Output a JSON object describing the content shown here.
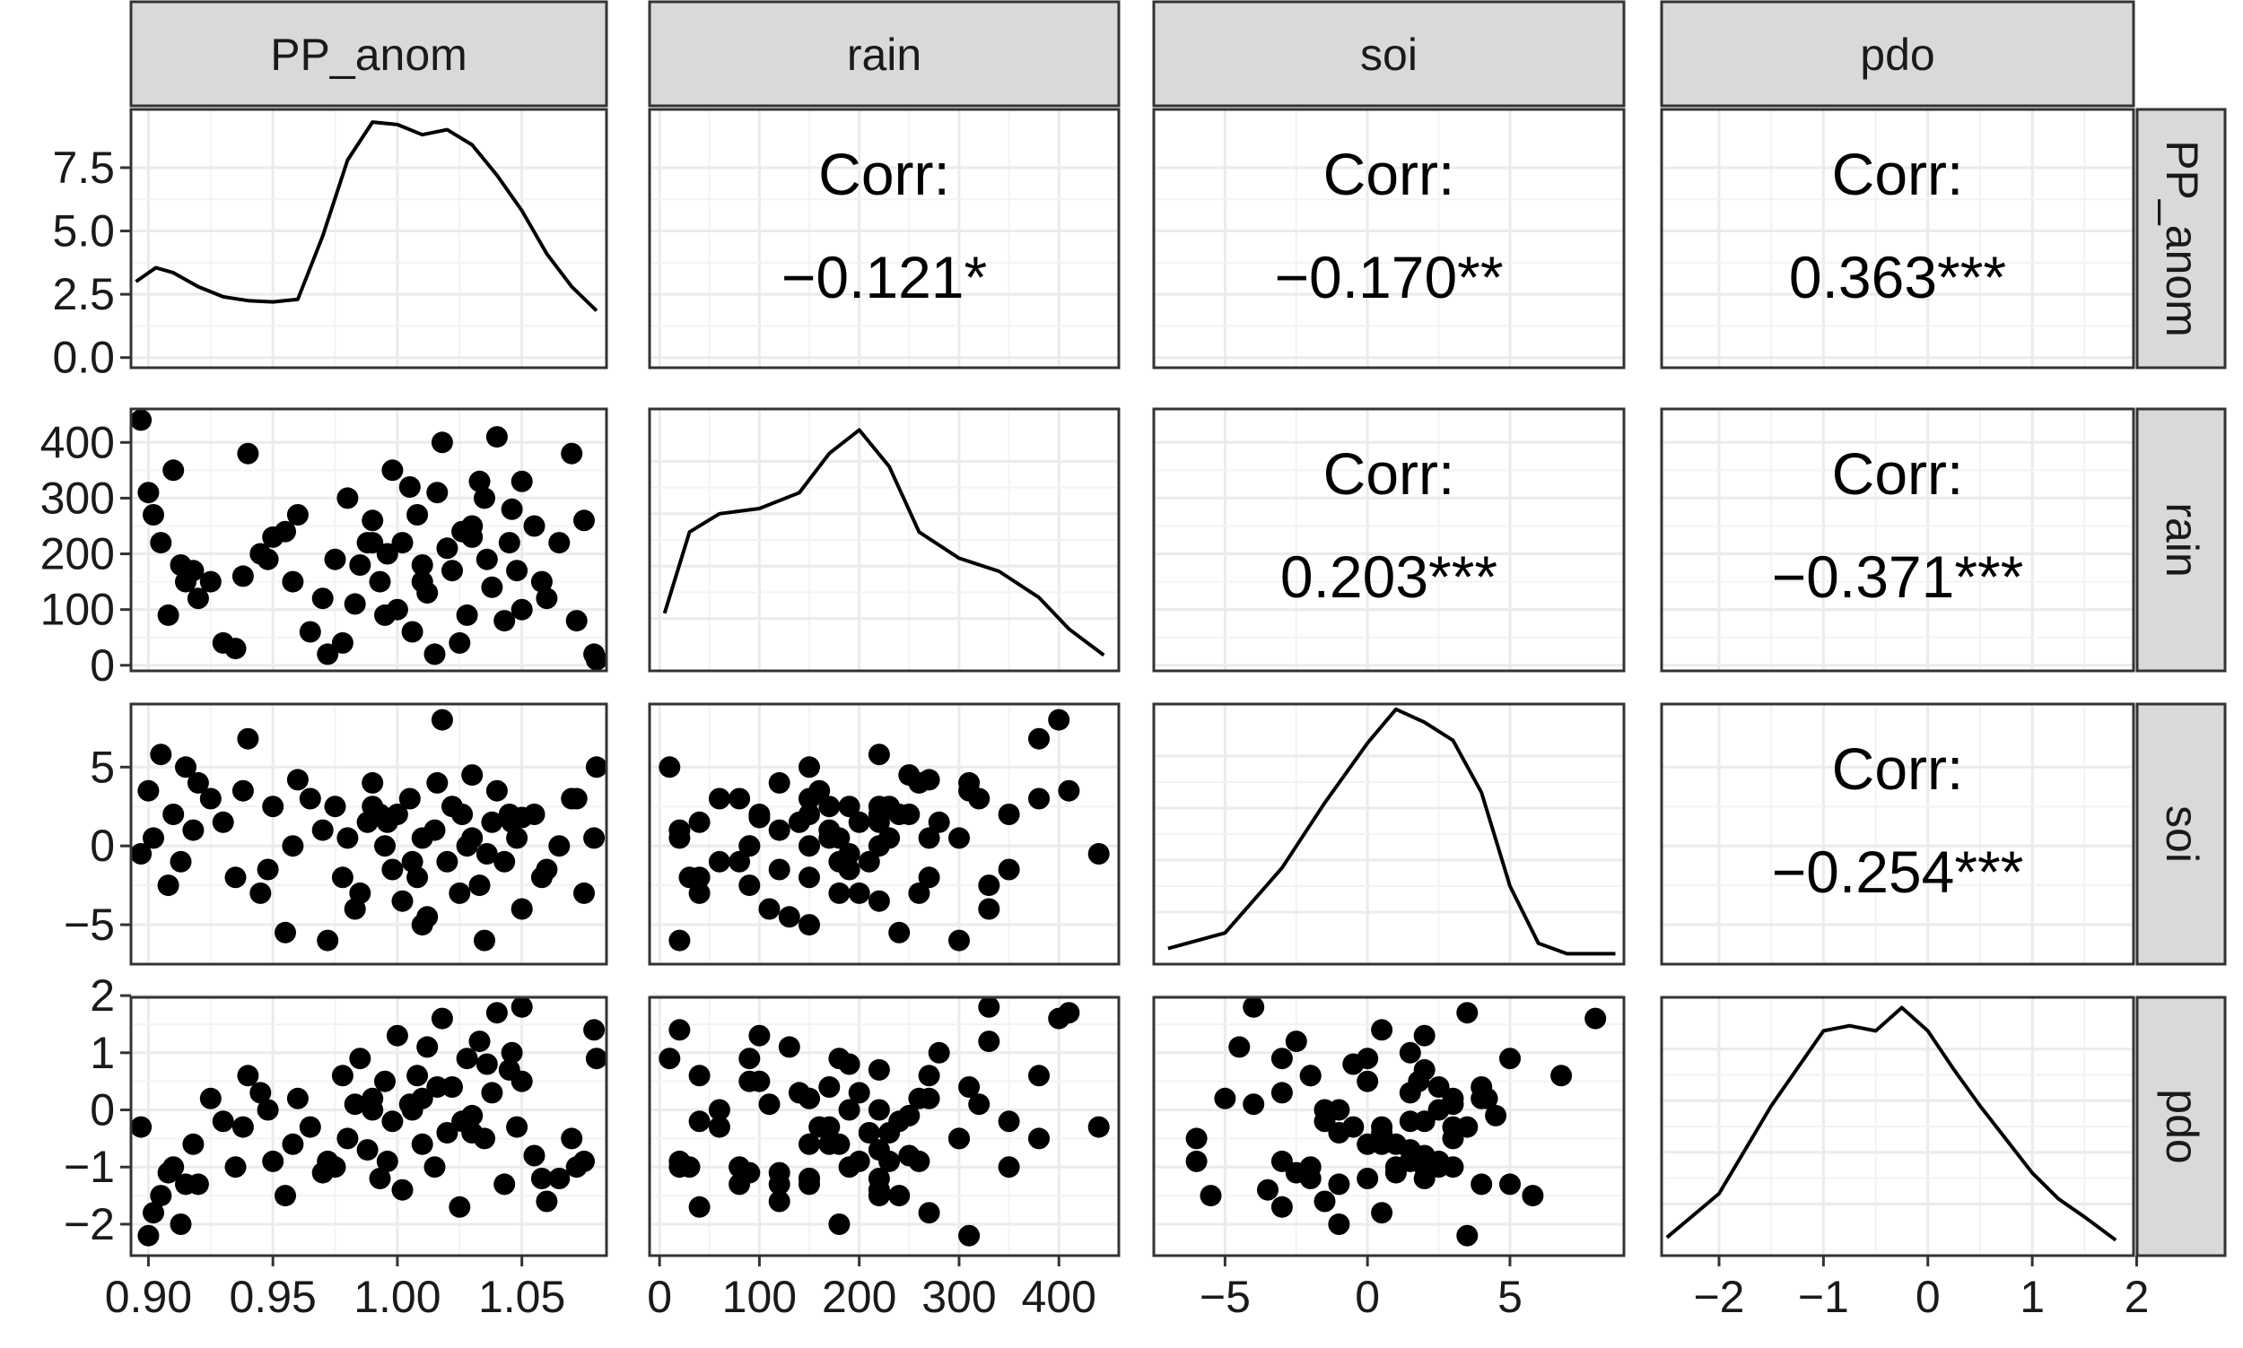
{
  "chart_data": {
    "type": "scatter",
    "variables": [
      "PP_anom",
      "rain",
      "soi",
      "pdo"
    ],
    "corr_label": "Corr:",
    "correlations": [
      {
        "row": 0,
        "col": 1,
        "value": "−0.121*"
      },
      {
        "row": 0,
        "col": 2,
        "value": "−0.170**"
      },
      {
        "row": 0,
        "col": 3,
        "value": "0.363***"
      },
      {
        "row": 1,
        "col": 2,
        "value": "0.203***"
      },
      {
        "row": 1,
        "col": 3,
        "value": "−0.371***"
      },
      {
        "row": 2,
        "col": 3,
        "value": "−0.254***"
      }
    ],
    "x_axes": [
      {
        "range": [
          0.893,
          1.084
        ],
        "ticks": [
          0.9,
          0.95,
          1.0,
          1.05
        ],
        "tick_labels": [
          "0.90",
          "0.95",
          "1.00",
          "1.05"
        ]
      },
      {
        "range": [
          -10,
          460
        ],
        "ticks": [
          0,
          100,
          200,
          300,
          400
        ],
        "tick_labels": [
          "0",
          "100",
          "200",
          "300",
          "400"
        ]
      },
      {
        "range": [
          -7.5,
          9.0
        ],
        "ticks": [
          -5,
          0,
          5
        ],
        "tick_labels": [
          "−5",
          "0",
          "5"
        ]
      },
      {
        "range": [
          -2.55,
          1.97
        ],
        "ticks": [
          -2,
          -1,
          0,
          1,
          2
        ],
        "tick_labels": [
          "−2",
          "−1",
          "0",
          "1",
          "2"
        ]
      }
    ],
    "y_axes": [
      {
        "range": [
          -0.4,
          9.8
        ],
        "ticks": [
          0,
          2.5,
          5,
          7.5
        ],
        "tick_labels": [
          "0.0",
          "2.5",
          "5.0",
          "7.5"
        ]
      },
      {
        "range": [
          -10,
          460
        ],
        "ticks": [
          0,
          100,
          200,
          300,
          400
        ],
        "tick_labels": [
          "0",
          "100",
          "200",
          "300",
          "400"
        ]
      },
      {
        "range": [
          -7.5,
          9.0
        ],
        "ticks": [
          -5,
          0,
          5
        ],
        "tick_labels": [
          "−5",
          "0",
          "5"
        ]
      },
      {
        "range": [
          -2.55,
          1.97
        ],
        "ticks": [
          -2,
          -1,
          0,
          1,
          2
        ],
        "tick_labels": [
          "−2",
          "−1",
          "0",
          "1",
          "2"
        ]
      }
    ],
    "density_ylims": [
      [
        -0.4,
        9.8
      ],
      [
        0,
        1
      ],
      [
        0,
        1
      ],
      [
        0,
        1
      ]
    ],
    "densities": [
      {
        "var": "PP_anom",
        "x": [
          0.895,
          0.903,
          0.91,
          0.92,
          0.93,
          0.94,
          0.95,
          0.96,
          0.97,
          0.98,
          0.99,
          1.0,
          1.01,
          1.02,
          1.03,
          1.04,
          1.05,
          1.06,
          1.07,
          1.08
        ],
        "y": [
          3.0,
          3.55,
          3.35,
          2.8,
          2.4,
          2.25,
          2.2,
          2.3,
          4.8,
          7.8,
          9.3,
          9.2,
          8.8,
          9.0,
          8.4,
          7.2,
          5.8,
          4.1,
          2.8,
          1.85
        ]
      },
      {
        "var": "rain",
        "x": [
          5,
          30,
          60,
          100,
          140,
          170,
          200,
          230,
          260,
          300,
          340,
          380,
          410,
          445
        ],
        "y": [
          0.22,
          0.53,
          0.6,
          0.62,
          0.68,
          0.83,
          0.92,
          0.78,
          0.53,
          0.43,
          0.38,
          0.28,
          0.16,
          0.06
        ]
      },
      {
        "var": "soi",
        "x": [
          -7.0,
          -5.0,
          -3.0,
          -1.5,
          0,
          1.0,
          2.0,
          3.0,
          4.0,
          5.0,
          6.0,
          7.0,
          8.7
        ],
        "y": [
          0.06,
          0.12,
          0.37,
          0.62,
          0.85,
          0.98,
          0.93,
          0.86,
          0.66,
          0.3,
          0.08,
          0.04,
          0.04
        ]
      },
      {
        "var": "pdo",
        "x": [
          -2.5,
          -2.0,
          -1.5,
          -1.0,
          -0.75,
          -0.5,
          -0.25,
          0,
          0.25,
          0.5,
          0.75,
          1.0,
          1.25,
          1.5,
          1.8
        ],
        "y": [
          0.07,
          0.24,
          0.58,
          0.87,
          0.89,
          0.87,
          0.96,
          0.87,
          0.72,
          0.58,
          0.45,
          0.32,
          0.22,
          0.15,
          0.06
        ]
      }
    ],
    "scatter_series": [
      {
        "var": "PP_anom",
        "values": [
          0.9,
          0.905,
          0.91,
          0.913,
          0.92,
          0.925,
          0.93,
          0.935,
          0.94,
          0.945,
          0.95,
          0.955,
          0.96,
          0.965,
          0.97,
          0.972,
          0.978,
          0.98,
          0.985,
          0.988,
          0.99,
          0.993,
          0.995,
          0.998,
          1.0,
          1.002,
          1.005,
          1.008,
          1.01,
          1.012,
          1.015,
          1.018,
          1.02,
          1.022,
          1.025,
          1.028,
          1.03,
          1.033,
          1.035,
          1.038,
          1.04,
          1.043,
          1.045,
          1.048,
          1.05,
          1.055,
          1.06,
          1.065,
          1.07,
          1.075,
          1.08,
          0.902,
          0.908,
          0.918,
          0.938,
          0.958,
          0.975,
          0.983,
          0.996,
          1.006,
          1.016,
          1.026,
          1.036,
          1.046,
          1.058,
          1.072,
          1.079,
          0.897,
          0.915,
          0.948,
          0.99,
          1.01,
          1.03,
          1.05
        ]
      },
      {
        "var": "rain",
        "values": [
          310,
          220,
          350,
          180,
          120,
          150,
          40,
          30,
          380,
          200,
          230,
          240,
          270,
          60,
          120,
          20,
          40,
          300,
          180,
          220,
          260,
          150,
          90,
          350,
          100,
          220,
          320,
          270,
          180,
          130,
          20,
          400,
          210,
          170,
          40,
          90,
          250,
          330,
          300,
          140,
          410,
          80,
          220,
          170,
          330,
          250,
          120,
          220,
          380,
          260,
          10,
          270,
          90,
          170,
          160,
          150,
          190,
          110,
          200,
          60,
          310,
          240,
          190,
          280,
          150,
          80,
          20,
          440,
          150,
          190,
          220,
          150,
          230,
          100
        ]
      },
      {
        "var": "soi",
        "values": [
          3.5,
          5.8,
          2.0,
          -1.0,
          4.0,
          3.0,
          1.5,
          -2.0,
          6.8,
          -3.0,
          2.5,
          -5.5,
          4.2,
          3.0,
          1.0,
          -6.0,
          -2.0,
          0.5,
          -3.0,
          1.5,
          4.0,
          2.0,
          0.0,
          -1.5,
          2.0,
          -3.5,
          3.0,
          -2.0,
          0.5,
          -4.5,
          1.0,
          8.0,
          -1.0,
          2.5,
          -3.0,
          0.0,
          4.5,
          -2.5,
          -6.0,
          1.5,
          3.5,
          -1.0,
          2.0,
          0.5,
          -4.0,
          2.0,
          -1.5,
          0.0,
          3.0,
          -3.0,
          5.0,
          0.5,
          -2.5,
          1.0,
          3.5,
          0.0,
          2.5,
          -4.0,
          1.5,
          -1.0,
          4.0,
          2.0,
          -0.5,
          1.5,
          -2.0,
          3.0,
          0.5,
          -0.5,
          5.0,
          -1.5,
          2.5,
          -5.0,
          0.5,
          1.8
        ]
      },
      {
        "var": "pdo",
        "values": [
          -2.2,
          -1.5,
          -1.0,
          -2.0,
          -1.3,
          0.2,
          -0.2,
          -1.0,
          0.6,
          0.3,
          -0.9,
          -1.5,
          0.2,
          -0.3,
          -1.1,
          -0.9,
          0.6,
          -0.5,
          0.9,
          -0.7,
          0.2,
          -1.2,
          0.5,
          -0.2,
          1.3,
          -1.4,
          0.1,
          0.6,
          -0.6,
          1.1,
          -1.0,
          1.6,
          -0.4,
          0.4,
          -1.7,
          0.9,
          -0.1,
          1.2,
          -0.5,
          0.3,
          1.7,
          -1.3,
          0.7,
          -0.3,
          1.8,
          -0.8,
          -1.6,
          -1.2,
          -0.5,
          -0.9,
          0.9,
          -1.8,
          -1.1,
          -0.6,
          -0.3,
          -0.6,
          -1.0,
          0.1,
          -0.9,
          0.0,
          0.4,
          -0.2,
          0.8,
          1.0,
          -1.2,
          -1.0,
          1.4,
          -0.3,
          -1.3,
          0.0,
          0.0,
          0.2,
          -0.4,
          0.5
        ]
      }
    ]
  }
}
